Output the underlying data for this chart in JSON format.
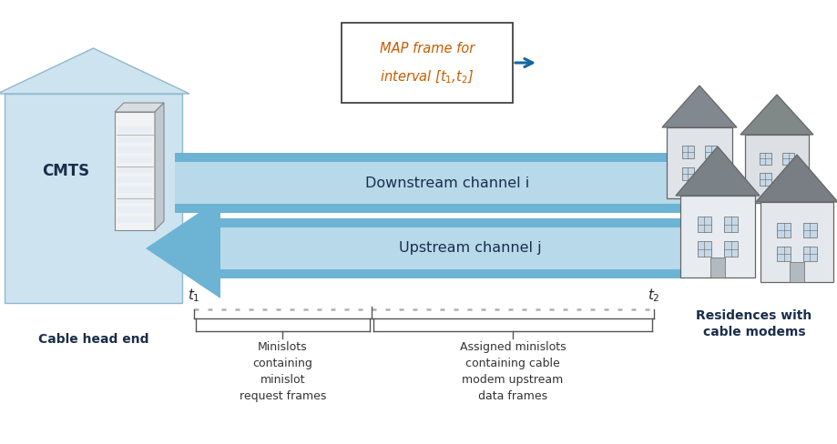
{
  "fig_width": 9.2,
  "fig_height": 4.88,
  "bg_color": "#ffffff",
  "house_fill_left": "#cde3f0",
  "arrow_color_dark": "#6db3d4",
  "arrow_color_light": "#b8d9ea",
  "map_arrow_color": "#1565a0",
  "text_dark": "#1a2e4a",
  "orange_text": "#c85c00",
  "dotted_line_color": "#b0b0b0",
  "bracket_color": "#555555",
  "cmts_label": "CMTS",
  "cable_head_end_label": "Cable head end",
  "residences_label": "Residences with\ncable modems",
  "downstream_label": "Downstream channel i",
  "upstream_label": "Upstream channel j",
  "map_box_line1": "MAP frame for",
  "map_box_line2": "interval [$t_1$,$t_2$]",
  "t1_label": "$t_1$",
  "t2_label": "$t_2$",
  "minislots_label": "Minislots\ncontaining\nminislot\nrequest frames",
  "assigned_label": "Assigned minislots\ncontaining cable\nmodem upstream\ndata frames"
}
